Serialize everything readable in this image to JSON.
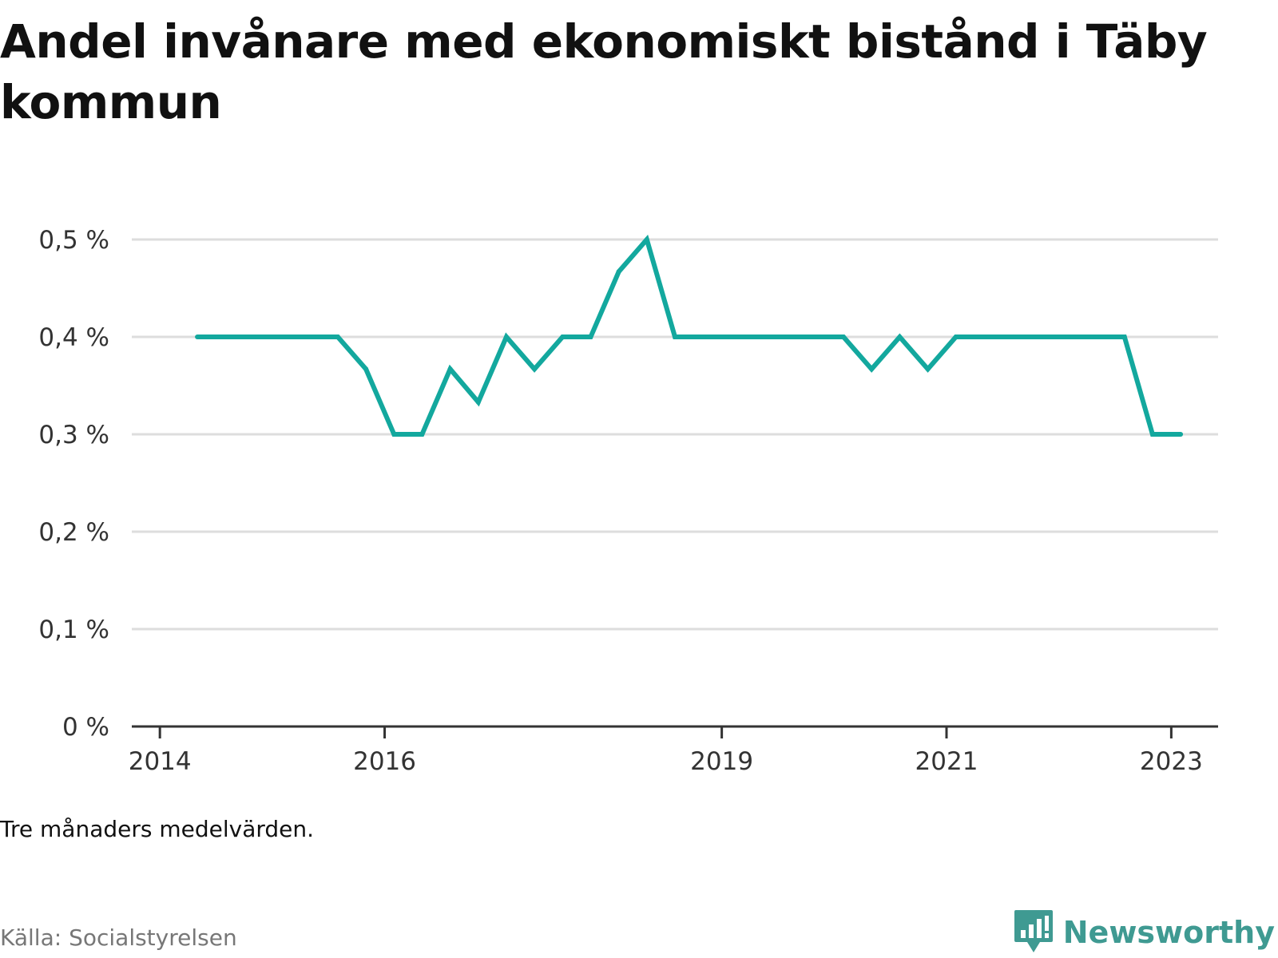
{
  "title": "Andel invånare med ekonomiskt bistånd i Täby kommun",
  "note": "Tre månaders medelvärden.",
  "source": "Källa: Socialstyrelsen",
  "brand": {
    "name": "Newsworthy",
    "icon": "newsworthy-chart-bubble-icon",
    "color": "#3f9a92"
  },
  "colors": {
    "line": "#13a89e",
    "grid": "#dddddd",
    "axis": "#333333"
  },
  "chart_data": {
    "type": "line",
    "title": "Andel invånare med ekonomiskt bistånd i Täby kommun",
    "xlabel": "",
    "ylabel": "",
    "grid": true,
    "legend": "none",
    "y_ticks": [
      {
        "value": 0,
        "label": "0 %"
      },
      {
        "value": 0.1,
        "label": "0,1 %"
      },
      {
        "value": 0.2,
        "label": "0,2 %"
      },
      {
        "value": 0.3,
        "label": "0,3 %"
      },
      {
        "value": 0.4,
        "label": "0,4 %"
      },
      {
        "value": 0.5,
        "label": "0,5 %"
      }
    ],
    "ylim": [
      0,
      0.5
    ],
    "x_ticks": [
      {
        "value": "2014-01",
        "label": "2014"
      },
      {
        "value": "2016-01",
        "label": "2016"
      },
      {
        "value": "2019-01",
        "label": "2019"
      },
      {
        "value": "2021-01",
        "label": "2021"
      },
      {
        "value": "2023-01",
        "label": "2023"
      }
    ],
    "xlim": [
      "2013-10",
      "2023-06"
    ],
    "series": [
      {
        "x": [
          "2014-05",
          "2014-08",
          "2014-11",
          "2015-02",
          "2015-05",
          "2015-08",
          "2015-11",
          "2016-02",
          "2016-05",
          "2016-08",
          "2016-11",
          "2017-02",
          "2017-05",
          "2017-08",
          "2017-11",
          "2018-02",
          "2018-05",
          "2018-08",
          "2018-11",
          "2019-02",
          "2019-05",
          "2019-08",
          "2019-11",
          "2020-02",
          "2020-05",
          "2020-08",
          "2020-11",
          "2021-02",
          "2021-05",
          "2021-08",
          "2021-11",
          "2022-02",
          "2022-05",
          "2022-08",
          "2022-11",
          "2023-02"
        ],
        "y": [
          0.4,
          0.4,
          0.4,
          0.4,
          0.4,
          0.4,
          0.367,
          0.3,
          0.3,
          0.367,
          0.333,
          0.4,
          0.367,
          0.4,
          0.4,
          0.467,
          0.5,
          0.4,
          0.4,
          0.4,
          0.4,
          0.4,
          0.4,
          0.4,
          0.367,
          0.4,
          0.367,
          0.4,
          0.4,
          0.4,
          0.4,
          0.4,
          0.4,
          0.4,
          0.3,
          0.3
        ]
      }
    ]
  }
}
